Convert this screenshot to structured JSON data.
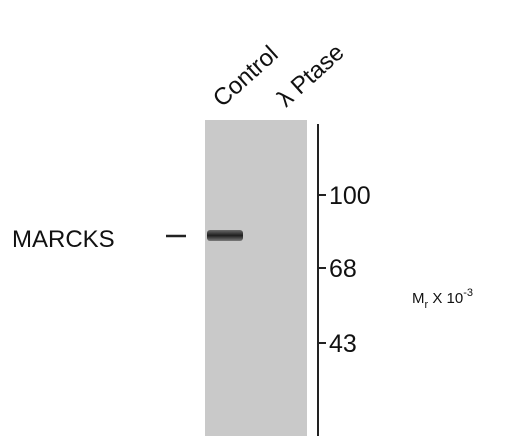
{
  "lanes": [
    "Control",
    "λ Ptase"
  ],
  "band_label": "MARCKS",
  "markers": [
    "100",
    "68",
    "43"
  ],
  "axis_label": {
    "base": "M",
    "subscript": "r",
    "middle": " X 10",
    "superscript": "-3"
  }
}
